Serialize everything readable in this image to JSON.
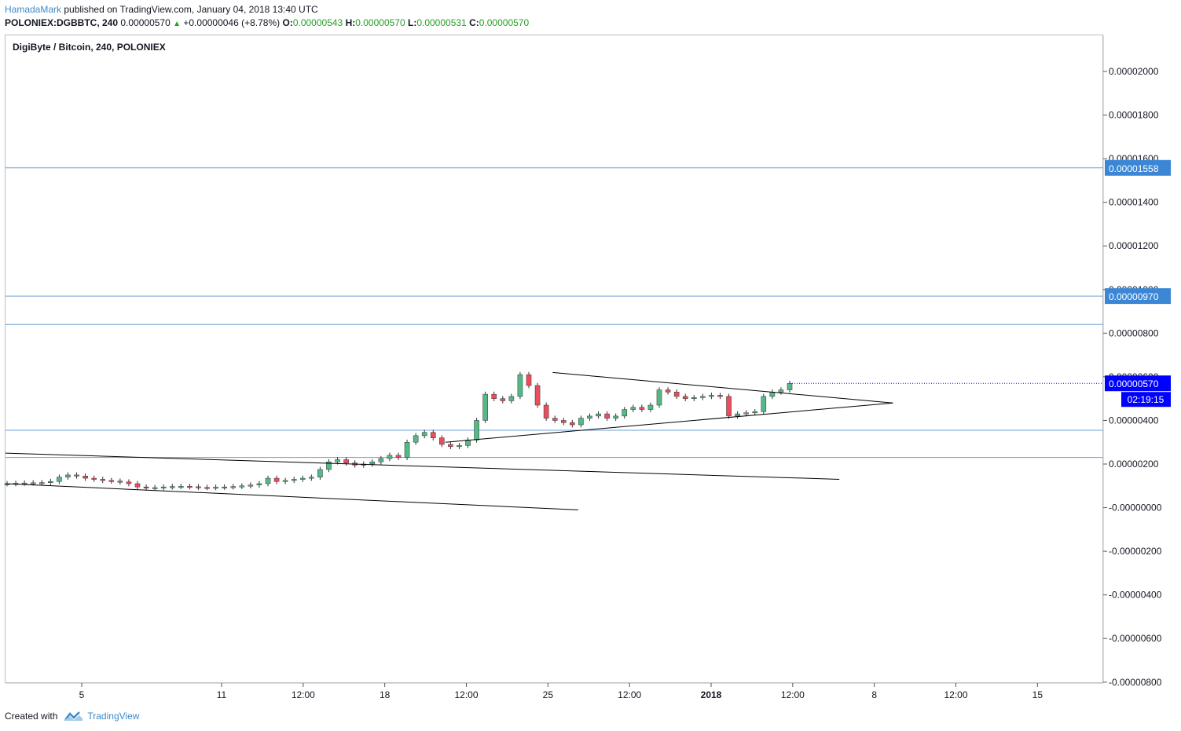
{
  "header": {
    "author": "HamadaMark",
    "published": "published on TradingView.com, January 04, 2018 13:40 UTC",
    "symbol": "POLONIEX:DGBBTC, 240",
    "last": "0.00000570",
    "change": "+0.00000046 (+8.78%)",
    "o_label": "O:",
    "o_value": "0.00000543",
    "h_label": "H:",
    "h_value": "0.00000570",
    "l_label": "L:",
    "l_value": "0.00000531",
    "c_label": "C:",
    "c_value": "0.00000570"
  },
  "chart_title": "DigiByte / Bitcoin, 240, POLONIEX",
  "footer": {
    "created_with": "Created with",
    "brand": "TradingView"
  },
  "colors": {
    "up": "#53b987",
    "down": "#eb4d5c",
    "hline": "#6f9fd0",
    "trend": "#000000",
    "price_tag": "#0000ff",
    "level_tag": "#3b87d6"
  },
  "chart_data": {
    "type": "candlestick",
    "title": "DigiByte / Bitcoin, 240, POLONIEX",
    "ylim": [
      -8e-06,
      2.2e-06
    ],
    "y_ticks": [
      "0.00002000",
      "0.00001800",
      "0.00001600",
      "0.00001400",
      "0.00001200",
      "0.00001000",
      "0.00000800",
      "0.00000600",
      "0.00000400",
      "0.00000200",
      "-0.00000000",
      "-0.00000200",
      "-0.00000400",
      "-0.00000600",
      "-0.00000800"
    ],
    "x_ticks": [
      "5",
      "11",
      "12:00",
      "18",
      "12:00",
      "25",
      "12:00",
      "2018",
      "12:00",
      "8",
      "12:00",
      "15"
    ],
    "horizontal_levels": [
      1.558e-05,
      9.7e-06,
      8.4e-06,
      3.55e-06,
      2.3e-06
    ],
    "level_labels": [
      "0.00001558",
      "0.00000970"
    ],
    "last_price": "0.00000570",
    "countdown": "02:19:15",
    "candles_close_path": [
      1.1e-06,
      1.12e-06,
      1.13e-06,
      1.14e-06,
      1.15e-06,
      1.2e-06,
      1.4e-06,
      1.5e-06,
      1.45e-06,
      1.35e-06,
      1.3e-06,
      1.25e-06,
      1.22e-06,
      1.18e-06,
      1.1e-06,
      9.5e-07,
      9e-07,
      9.2e-07,
      9.5e-07,
      9.7e-07,
      9.8e-07,
      9.6e-07,
      9.3e-07,
      9.2e-07,
      9.4e-07,
      9.5e-07,
      9.7e-07,
      1e-06,
      1.04e-06,
      1.1e-06,
      1.35e-06,
      1.2e-06,
      1.25e-06,
      1.3e-06,
      1.35e-06,
      1.4e-06,
      1.75e-06,
      2.1e-06,
      2.2e-06,
      2.05e-06,
      1.95e-06,
      2e-06,
      2.1e-06,
      2.25e-06,
      2.4e-06,
      2.3e-06,
      3e-06,
      3.3e-06,
      3.45e-06,
      3.2e-06,
      2.9e-06,
      2.8e-06,
      2.85e-06,
      3.1e-06,
      4e-06,
      5.2e-06,
      5e-06,
      4.9e-06,
      5.1e-06,
      6.1e-06,
      5.6e-06,
      4.7e-06,
      4.1e-06,
      4e-06,
      3.9e-06,
      3.8e-06,
      4.1e-06,
      4.2e-06,
      4.3e-06,
      4.1e-06,
      4.2e-06,
      4.5e-06,
      4.6e-06,
      4.5e-06,
      4.7e-06,
      5.4e-06,
      5.3e-06,
      5.1e-06,
      5e-06,
      5.05e-06,
      5.1e-06,
      5.15e-06,
      5.1e-06,
      4.2e-06,
      4.3e-06,
      4.35e-06,
      4.4e-06,
      5.1e-06,
      5.3e-06,
      5.4e-06,
      5.7e-06
    ],
    "trendlines": [
      {
        "from": [
          "start",
          2.5e-06
        ],
        "to": [
          "31 Dec",
          1.3e-06
        ]
      },
      {
        "from": [
          "start",
          1.1e-06
        ],
        "to": [
          "26 Dec",
          -1e-07
        ]
      },
      {
        "from": [
          "21 Dec",
          3e-06
        ],
        "to": [
          "7 Jan",
          4.8e-06
        ]
      },
      {
        "from": [
          "25 Dec",
          6.2e-06
        ],
        "to": [
          "7 Jan",
          4.8e-06
        ]
      }
    ]
  }
}
